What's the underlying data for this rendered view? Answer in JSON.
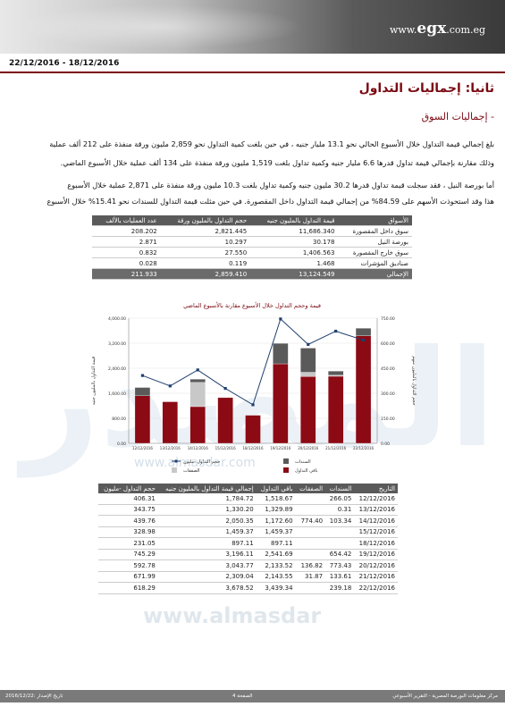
{
  "header": {
    "logo_prefix": "www.",
    "logo_brand": "egx",
    "logo_suffix": ".com.eg"
  },
  "date_range": "22/12/2016 - 18/12/2016",
  "section_title": "ثانيا: إجماليات التداول",
  "subsection_title": "- إجماليات السوق",
  "paragraphs": [
    "بلغ إجمالي قيمة التداول خلال الأسبوع الحالي نحو 13.1 مليار جنيه ، في حين بلغت كمية التداول نحو 2,859 مليون ورقة منفذة على 212 ألف عملية",
    "وذلك مقارنة بإجمالي قيمة تداول قدرها 6.6 مليار جنيه وكمية تداول بلغت 1,519 مليون ورقة منفذة على 134 ألف عملية خلال الأسبوع الماضي.",
    "أما بورصة النيل ، فقد سجلت قيمة تداول قدرها 30.2 مليون جنيه وكمية تداول بلغت 10.3 مليون ورقة منفذة على 2,871 عملية خلال الأسبوع",
    "هذا وقد استحوذت الأسهم على 84.59% من إجمالي قيمة التداول داخل المقصورة. في حين مثلت قيمة التداول للسندات نحو 15.41% خلال الأسبوع"
  ],
  "summary_table": {
    "headers": [
      "الأسواق",
      "قيمة التداول بالمليون جنيه",
      "حجم التداول بالمليون ورقة",
      "عدد العمليات بالألف"
    ],
    "rows": [
      [
        "سوق داخل المقصورة",
        "11,686.340",
        "2,821.445",
        "208.202"
      ],
      [
        "بورصة النيل",
        "30.178",
        "10.297",
        "2.871"
      ],
      [
        "سوق خارج المقصورة",
        "1,406.563",
        "27.550",
        "0.832"
      ],
      [
        "صناديق المؤشرات",
        "1.468",
        "0.119",
        "0.028"
      ]
    ],
    "total": [
      "الإجمالي",
      "13,124.549",
      "2,859.410",
      "211.933"
    ]
  },
  "chart_data": {
    "type": "bar",
    "title": "قيمة وحجم التداول خلال الأسبوع مقارنة بالأسبوع الماضي",
    "categories": [
      "12/12/2016",
      "13/12/2016",
      "14/12/2016",
      "15/12/2016",
      "18/12/2016",
      "19/12/2016",
      "20/12/2016",
      "21/12/2016",
      "22/12/2016"
    ],
    "ylabel_left": "قيمة التداول بالمليون جنيه",
    "ylabel_right": "حجم التداول بالمليون سهم",
    "ylim_left": [
      0,
      4000
    ],
    "ylim_right": [
      0,
      750
    ],
    "left_ticks": [
      "0.00",
      "800.00",
      "1,600.00",
      "2,400.00",
      "3,200.00",
      "4,000.00"
    ],
    "right_ticks": [
      "0.00",
      "150.00",
      "300.00",
      "450.00",
      "600.00",
      "750.00"
    ],
    "series": [
      {
        "name": "باقي التداول",
        "color": "#8b0a14",
        "values": [
          1518.67,
          1329.89,
          1172.6,
          1459.37,
          897.11,
          2541.69,
          2133.52,
          2143.55,
          3439.34
        ]
      },
      {
        "name": "الصفقات",
        "color": "#c8c8c8",
        "values": [
          0,
          0,
          774.4,
          0,
          0,
          0,
          136.82,
          31.87,
          0
        ]
      },
      {
        "name": "السندات",
        "color": "#5a5a5a",
        "values": [
          266.05,
          0.31,
          103.34,
          0,
          0,
          654.42,
          773.43,
          133.61,
          239.18
        ]
      },
      {
        "name": "حجم التداول -مليون",
        "color": "#1f3f6e",
        "values": [
          406.31,
          343.75,
          439.76,
          328.98,
          231.05,
          745.29,
          592.78,
          671.99,
          618.29
        ]
      }
    ],
    "legend": [
      "السندات",
      "حجم التداول -مليون",
      "باقي التداول",
      "الصفقات"
    ]
  },
  "daily_table": {
    "headers": [
      "التاريخ",
      "السندات",
      "الصفقات",
      "باقي التداول",
      "إجمالي قيمة التداول بالمليون جنيه",
      "حجم التداول -مليون"
    ],
    "rows": [
      [
        "12/12/2016",
        "266.05",
        "",
        "1,518.67",
        "1,784.72",
        "406.31"
      ],
      [
        "13/12/2016",
        "0.31",
        "",
        "1,329.89",
        "1,330.20",
        "343.75"
      ],
      [
        "14/12/2016",
        "103.34",
        "774.40",
        "1,172.60",
        "2,050.35",
        "439.76"
      ],
      [
        "15/12/2016",
        "",
        "",
        "1,459.37",
        "1,459.37",
        "328.98"
      ],
      [
        "18/12/2016",
        "",
        "",
        "897.11",
        "897.11",
        "231.05"
      ],
      [
        "19/12/2016",
        "654.42",
        "",
        "2,541.69",
        "3,196.11",
        "745.29"
      ],
      [
        "20/12/2016",
        "773.43",
        "136.82",
        "2,133.52",
        "3,043.77",
        "592.78"
      ],
      [
        "21/12/2016",
        "133.61",
        "31.87",
        "2,143.55",
        "2,309.04",
        "671.99"
      ],
      [
        "22/12/2016",
        "239.18",
        "",
        "3,439.34",
        "3,678.52",
        "618.29"
      ]
    ]
  },
  "footer": {
    "left": "تاريخ الإصدار :2016/12/22",
    "center": "الصفحة 4",
    "right": "مركز معلومات البورصة المصرية - التقرير الأسبوعي"
  }
}
